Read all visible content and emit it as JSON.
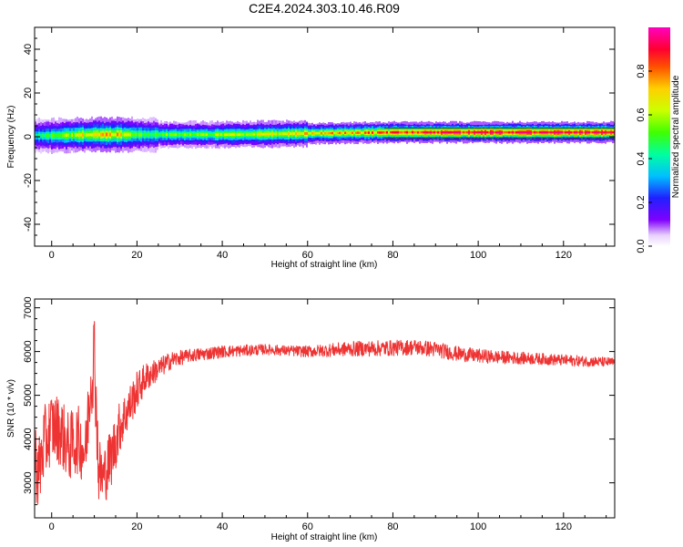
{
  "title": "C2E4.2024.303.10.46.R09",
  "chart_data": [
    {
      "type": "heatmap",
      "xlabel": "Height of straight line (km)",
      "ylabel": "Frequency (Hz)",
      "xlim": [
        -4,
        132
      ],
      "ylim": [
        -50,
        50
      ],
      "x_ticks": [
        0,
        20,
        40,
        60,
        80,
        100,
        120
      ],
      "y_ticks": [
        -40,
        -20,
        0,
        20,
        40
      ],
      "colorbar": {
        "label": "Normalized spectral amplitude",
        "range": [
          0,
          1
        ],
        "ticks": [
          0.0,
          0.2,
          0.4,
          0.6,
          0.8
        ],
        "tick_labels": [
          "0.0",
          "0.2",
          "0.4",
          "0.6",
          "0.8"
        ]
      },
      "band": {
        "description_center_freq": 1,
        "x": [
          -4,
          0,
          5,
          10,
          15,
          20,
          30,
          40,
          50,
          60,
          70,
          80,
          90,
          100,
          110,
          120,
          132
        ],
        "center_hz": [
          0.5,
          0.5,
          0.8,
          1,
          1,
          1,
          1,
          1,
          1.2,
          1.5,
          1.8,
          2,
          2,
          2,
          2,
          2,
          2
        ],
        "core_amplitude": [
          0.4,
          0.5,
          0.6,
          0.7,
          0.7,
          0.5,
          0.55,
          0.6,
          0.62,
          0.7,
          0.75,
          0.82,
          0.9,
          0.92,
          0.92,
          0.92,
          0.92
        ]
      }
    },
    {
      "type": "line",
      "xlabel": "Height of straight line (km)",
      "ylabel": "SNR (10 * v/v)",
      "xlim": [
        -4,
        132
      ],
      "ylim": [
        2200,
        7200
      ],
      "x_ticks": [
        0,
        20,
        40,
        60,
        80,
        100,
        120
      ],
      "y_ticks": [
        3000,
        4000,
        5000,
        6000,
        7000
      ],
      "color": "#ee3333",
      "series": [
        {
          "trend_x": [
            -4,
            -3,
            -2,
            0,
            2,
            4,
            6,
            8,
            9,
            10,
            11,
            12,
            14,
            16,
            18,
            20,
            22,
            25,
            28,
            32,
            36,
            40,
            45,
            50,
            55,
            60,
            65,
            70,
            75,
            80,
            85,
            90,
            95,
            100,
            105,
            110,
            115,
            120,
            125,
            132
          ],
          "trend_y": [
            3600,
            3200,
            3800,
            4300,
            4200,
            3800,
            4000,
            3700,
            5200,
            6000,
            3300,
            3100,
            3600,
            4300,
            4700,
            5100,
            5400,
            5600,
            5800,
            5900,
            5950,
            6000,
            6020,
            6050,
            6020,
            6000,
            6030,
            6060,
            6070,
            6080,
            6100,
            6050,
            5950,
            5900,
            5870,
            5850,
            5830,
            5800,
            5780,
            5750
          ],
          "noise_amplitude": [
            900,
            900,
            900,
            800,
            800,
            800,
            800,
            800,
            900,
            1100,
            800,
            700,
            700,
            600,
            500,
            450,
            350,
            250,
            200,
            150,
            150,
            140,
            130,
            120,
            120,
            130,
            150,
            170,
            180,
            180,
            180,
            180,
            170,
            160,
            150,
            140,
            130,
            130,
            120,
            110
          ]
        }
      ]
    }
  ]
}
